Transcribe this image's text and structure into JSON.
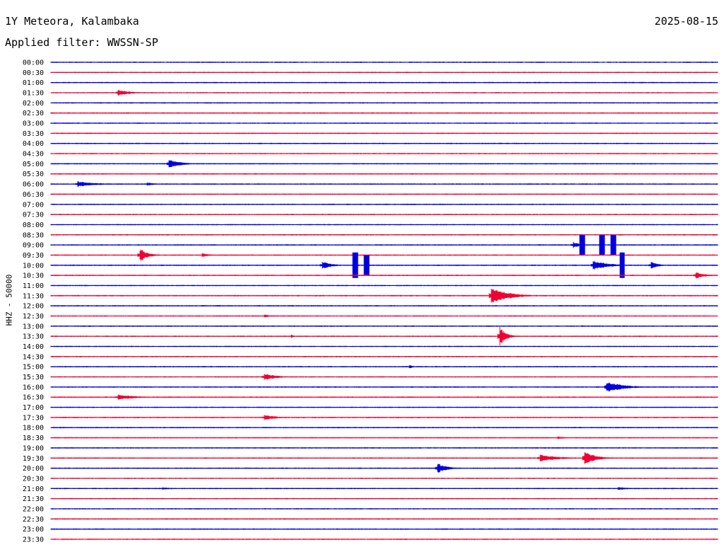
{
  "header": {
    "station": "1Y Meteora, Kalambaka",
    "date": "2025-08-15",
    "filter": "Applied filter: WWSSN-SP"
  },
  "chart_data": {
    "type": "helicorder",
    "title": "1Y Meteora, Kalambaka",
    "date": "2025-08-15",
    "filter": "WWSSN-SP",
    "ylabel": "HHZ - 50000",
    "colors": [
      "#0000dd",
      "#ee0033"
    ],
    "row_labels": [
      "00:00",
      "00:30",
      "01:00",
      "01:30",
      "02:00",
      "02:30",
      "03:00",
      "03:30",
      "04:00",
      "04:30",
      "05:00",
      "05:30",
      "06:00",
      "06:30",
      "07:00",
      "07:30",
      "08:00",
      "08:30",
      "09:00",
      "09:30",
      "10:00",
      "10:30",
      "11:00",
      "11:30",
      "12:00",
      "12:30",
      "13:00",
      "13:30",
      "14:00",
      "14:30",
      "15:00",
      "15:30",
      "16:00",
      "16:30",
      "17:00",
      "17:30",
      "18:00",
      "18:30",
      "19:00",
      "19:30",
      "20:00",
      "20:30",
      "21:00",
      "21:30",
      "22:00",
      "22:30",
      "23:00",
      "23:30"
    ],
    "minutes_per_line": 30,
    "events": [
      {
        "row": "01:30",
        "minute": 3.0,
        "amplitude": 5,
        "duration": 1.5
      },
      {
        "row": "05:00",
        "minute": 5.3,
        "amplitude": 6,
        "duration": 1.6
      },
      {
        "row": "06:00",
        "minute": 1.2,
        "amplitude": 4,
        "duration": 2.5
      },
      {
        "row": "06:00",
        "minute": 4.3,
        "amplitude": 3,
        "duration": 1.0
      },
      {
        "row": "09:00",
        "minute": 23.5,
        "amplitude": 5,
        "duration": 0.8
      },
      {
        "row": "09:00",
        "minute": 23.9,
        "amplitude": 14,
        "duration": 0.1
      },
      {
        "row": "09:00",
        "minute": 24.8,
        "amplitude": 14,
        "duration": 0.1
      },
      {
        "row": "09:00",
        "minute": 25.3,
        "amplitude": 14,
        "duration": 0.1
      },
      {
        "row": "09:30",
        "minute": 4.0,
        "amplitude": 10,
        "duration": 1.0
      },
      {
        "row": "09:30",
        "minute": 6.8,
        "amplitude": 3,
        "duration": 1.0
      },
      {
        "row": "10:00",
        "minute": 12.2,
        "amplitude": 6,
        "duration": 1.2
      },
      {
        "row": "10:00",
        "minute": 13.7,
        "amplitude": 18,
        "duration": 0.1
      },
      {
        "row": "10:00",
        "minute": 14.2,
        "amplitude": 14,
        "duration": 0.1
      },
      {
        "row": "10:00",
        "minute": 24.4,
        "amplitude": 7,
        "duration": 2.0
      },
      {
        "row": "10:00",
        "minute": 25.7,
        "amplitude": 18,
        "duration": 0.1
      },
      {
        "row": "10:00",
        "minute": 27.0,
        "amplitude": 5,
        "duration": 1.0
      },
      {
        "row": "10:30",
        "minute": 29.0,
        "amplitude": 5,
        "duration": 1.2
      },
      {
        "row": "11:30",
        "minute": 19.8,
        "amplitude": 12,
        "duration": 2.2
      },
      {
        "row": "12:30",
        "minute": 9.6,
        "amplitude": 3,
        "duration": 0.6
      },
      {
        "row": "13:30",
        "minute": 20.2,
        "amplitude": 14,
        "duration": 0.8
      },
      {
        "row": "13:30",
        "minute": 10.8,
        "amplitude": 3,
        "duration": 0.4
      },
      {
        "row": "15:00",
        "minute": 16.1,
        "amplitude": 3,
        "duration": 0.7
      },
      {
        "row": "15:30",
        "minute": 9.6,
        "amplitude": 5,
        "duration": 1.6
      },
      {
        "row": "16:00",
        "minute": 25.0,
        "amplitude": 8,
        "duration": 2.2
      },
      {
        "row": "16:30",
        "minute": 3.0,
        "amplitude": 4,
        "duration": 2.5
      },
      {
        "row": "17:30",
        "minute": 9.6,
        "amplitude": 4,
        "duration": 1.6
      },
      {
        "row": "18:30",
        "minute": 22.8,
        "amplitude": 2,
        "duration": 1.5
      },
      {
        "row": "19:30",
        "minute": 22.0,
        "amplitude": 5,
        "duration": 2.5
      },
      {
        "row": "19:30",
        "minute": 24.0,
        "amplitude": 10,
        "duration": 1.4
      },
      {
        "row": "20:00",
        "minute": 17.4,
        "amplitude": 7,
        "duration": 1.3
      },
      {
        "row": "21:00",
        "minute": 5.0,
        "amplitude": 2,
        "duration": 1.2
      },
      {
        "row": "21:00",
        "minute": 25.5,
        "amplitude": 2,
        "duration": 2.0
      }
    ]
  }
}
